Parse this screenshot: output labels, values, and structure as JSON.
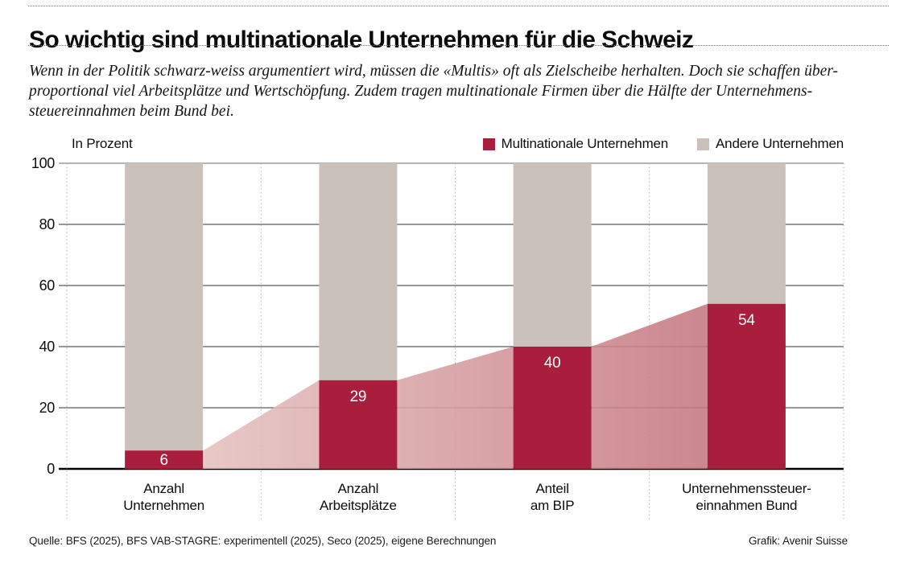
{
  "header": {
    "title": "So wichtig sind multinationale Unternehmen für die Schweiz",
    "subtitle_lines": [
      "Wenn in der Politik schwarz-weiss argumentiert wird, müssen die «Multis» oft als Zielscheibe herhalten. Doch sie schaffen über-",
      "proportional viel Arbeitsplätze und Wertschöpfung. Zudem tragen multinationale Firmen über die Hälfte der Unternehmens-",
      "steuereinnahmen beim Bund bei."
    ]
  },
  "chart_data": {
    "type": "bar",
    "subtype": "stacked-100-percent-with-connecting-bands",
    "ylabel": "In Prozent",
    "ylim": [
      0,
      100
    ],
    "yticks": [
      0,
      20,
      40,
      60,
      80,
      100
    ],
    "grid": "horizontal solid, vertical dashed category separators",
    "legend_position": "top-right",
    "categories": [
      "Anzahl\nUnternehmen",
      "Anzahl\nArbeitsplätze",
      "Anteil\nam BIP",
      "Unternehmenssteuer-\neinnahmen Bund"
    ],
    "series": [
      {
        "name": "Multinationale Unternehmen",
        "values": [
          6,
          29,
          40,
          54
        ],
        "color": "#a81e3c"
      },
      {
        "name": "Andere Unternehmen",
        "values": [
          94,
          71,
          60,
          46
        ],
        "color": "#cac2ba"
      }
    ],
    "value_labels": [
      "6",
      "29",
      "40",
      "54"
    ],
    "band_gradient": [
      "#e9cdca",
      "#c06b75"
    ]
  },
  "footer": {
    "source": "Quelle: BFS (2025), BFS VAB-STAGRE: experimentell (2025), Seco (2025), eigene Berechnungen",
    "credit": "Grafik: Avenir Suisse"
  }
}
